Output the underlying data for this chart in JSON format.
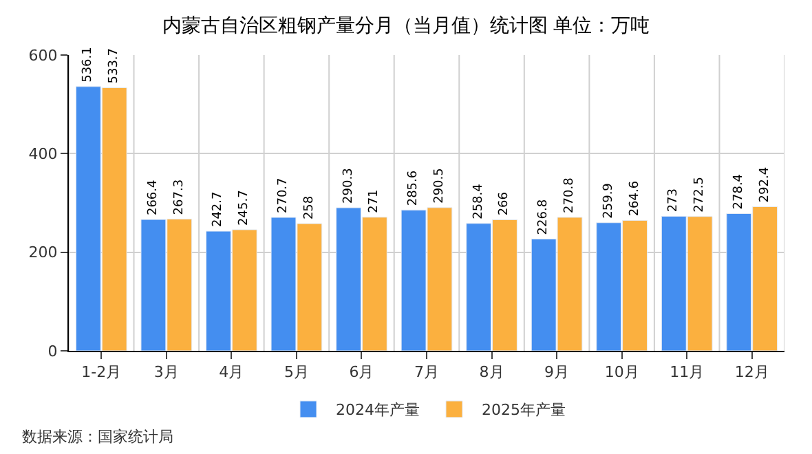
{
  "chart_data": {
    "type": "bar",
    "title": "内蒙古自治区粗钢产量分月（当月值）统计图 单位：万吨",
    "categories": [
      "1-2月",
      "3月",
      "4月",
      "5月",
      "6月",
      "7月",
      "8月",
      "9月",
      "10月",
      "11月",
      "12月"
    ],
    "series": [
      {
        "name": "2024年产量",
        "color": "#448ef0",
        "values": [
          536.1,
          266.4,
          242.7,
          270.7,
          290.3,
          285.6,
          258.4,
          226.8,
          259.9,
          273,
          278.4
        ]
      },
      {
        "name": "2025年产量",
        "color": "#fbb03f",
        "values": [
          533.7,
          267.3,
          245.7,
          258,
          271,
          290.5,
          266,
          270.8,
          264.6,
          272.5,
          292.4
        ]
      }
    ],
    "ylim": [
      0,
      600
    ],
    "yticks": [
      0,
      200,
      400,
      600
    ],
    "grid": true,
    "legend": "bottom",
    "data_labels": true,
    "annotations": [
      "数据来源：国家统计局"
    ]
  }
}
